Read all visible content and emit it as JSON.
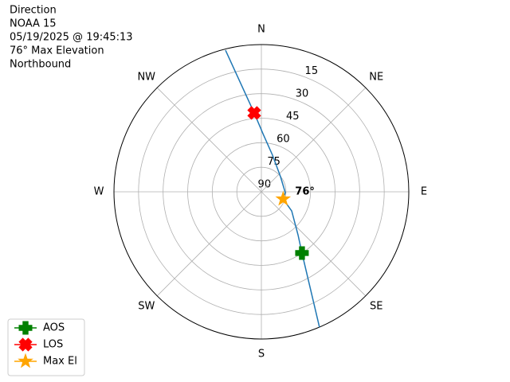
{
  "chart_data": {
    "type": "polar",
    "title_lines": [
      "Direction",
      "NOAA 15",
      "05/19/2025 @ 19:45:13",
      "76° Max Elevation",
      "Northbound"
    ],
    "xlim": [
      0,
      360
    ],
    "xticks": [
      {
        "value": 0,
        "label": "N"
      },
      {
        "value": 45,
        "label": "NE"
      },
      {
        "value": 90,
        "label": "E"
      },
      {
        "value": 135,
        "label": "SE"
      },
      {
        "value": 180,
        "label": "S"
      },
      {
        "value": 225,
        "label": "SW"
      },
      {
        "value": 270,
        "label": "W"
      },
      {
        "value": 315,
        "label": "NW"
      }
    ],
    "ylim": [
      90,
      0
    ],
    "yticks": [
      90,
      75,
      60,
      45,
      30,
      15
    ],
    "grid": true,
    "legend": "lower left",
    "series": [
      {
        "color": "#1f77b4",
        "x": [
          156.8,
          146.5,
          139.6,
          122.3,
          108.4,
          91.9,
          51.6,
          16.9,
          1.6,
          354.8,
          345.8
        ],
        "values": [
          0,
          45.1,
          55.5,
          68.1,
          76,
          75.4,
          75.1,
          66.6,
          54.5,
          41.6,
          0.7
        ]
      },
      {
        "name": "AOS",
        "marker": "plus",
        "color": "#008000",
        "x": [
          146.5
        ],
        "values": [
          45.1
        ]
      },
      {
        "name": "LOS",
        "marker": "x",
        "color": "#ff0000",
        "x": [
          354.8
        ],
        "values": [
          41.6
        ]
      },
      {
        "name": "Max El",
        "marker": "star",
        "color": "#ffa500",
        "x": [
          108.4
        ],
        "values": [
          76
        ],
        "value_labels": [
          "76°"
        ]
      }
    ]
  }
}
